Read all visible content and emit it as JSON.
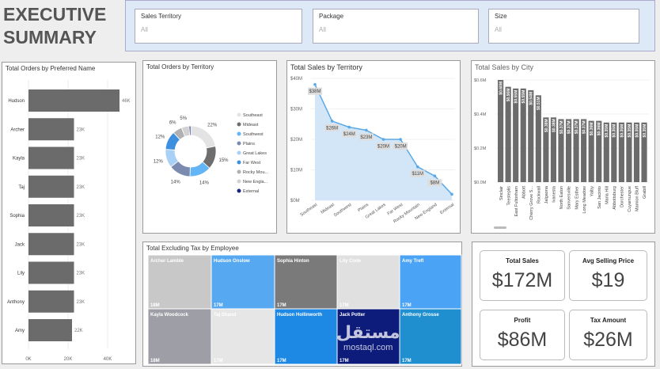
{
  "header": {
    "title_line1": "EXECUTIVE",
    "title_line2": "SUMMARY"
  },
  "slicers": [
    {
      "label": "Sales Territory",
      "value": "All"
    },
    {
      "label": "Package",
      "value": "All"
    },
    {
      "label": "Size",
      "value": "All"
    }
  ],
  "chart_data": [
    {
      "type": "hbar",
      "title": "Total Orders by Preferred Name",
      "categories": [
        "Hudson",
        "Archer",
        "Kayla",
        "Taj",
        "Sophia",
        "Jack",
        "Lily",
        "Anthony",
        "Amy"
      ],
      "values": [
        46000,
        23000,
        23000,
        23000,
        23000,
        23000,
        23000,
        23000,
        22000
      ],
      "value_labels": [
        "46K",
        "23K",
        "23K",
        "23K",
        "23K",
        "23K",
        "23K",
        "23K",
        "22K"
      ],
      "color": "#6b6b6b",
      "xlim": [
        0,
        50000
      ],
      "xticks": [
        {
          "value": 0,
          "label": "0K"
        },
        {
          "value": 20000,
          "label": "20K"
        },
        {
          "value": 40000,
          "label": "40K"
        }
      ]
    },
    {
      "type": "donut",
      "title": "Total Orders by Territory",
      "categories": [
        "Southeast",
        "Mideast",
        "Southwest",
        "Plains",
        "Great Lakes",
        "Far West",
        "Rocky Mou...",
        "New Engla...",
        "External"
      ],
      "values": [
        22,
        15,
        14,
        14,
        12,
        12,
        6,
        5,
        1
      ],
      "value_labels": [
        "22%",
        "15%",
        "14%",
        "14%",
        "12%",
        "12%",
        "6%",
        "5%",
        null
      ],
      "colors": [
        "#e3e3e3",
        "#6e6e6e",
        "#64b5f6",
        "#7b8bb0",
        "#a9d0f5",
        "#3d8fe0",
        "#b0b0b0",
        "#d2d2d2",
        "#1a237e"
      ]
    },
    {
      "type": "area",
      "title": "Total Sales by Territory",
      "categories": [
        "Southeast",
        "Mideast",
        "Southwest",
        "Plains",
        "Great Lakes",
        "Far West",
        "Rocky Mountain",
        "New England",
        "External"
      ],
      "values": [
        38000000,
        26000000,
        24000000,
        23000000,
        20000000,
        20000000,
        11000000,
        8000000,
        2000000
      ],
      "value_labels": [
        "$38M",
        "$26M",
        "$24M",
        "$23M",
        "$20M",
        "$20M",
        "$11M",
        "$8M",
        null
      ],
      "color": "#5aa9e6",
      "ylim": [
        0,
        40000000
      ],
      "yticks": [
        {
          "value": 0,
          "label": "$0M"
        },
        {
          "value": 10000000,
          "label": "$10M"
        },
        {
          "value": 20000000,
          "label": "$20M"
        },
        {
          "value": 30000000,
          "label": "$30M"
        },
        {
          "value": 40000000,
          "label": "$40M"
        }
      ]
    },
    {
      "type": "bar",
      "title": "Total Sales by City",
      "categories": [
        "Sinclair",
        "Teesteplis",
        "East Fultonham",
        "Abbott",
        "Cherry Grove S...",
        "Rockwall",
        "Jalgaona",
        "Ivanesta",
        "North Eaton",
        "Sanversville",
        "Mary Esther",
        "Long Meadow",
        "Yalby",
        "San Jacinto",
        "Maria Hill",
        "Abbottsburg",
        "Dorchester",
        "Cuyamungue",
        "Mamion Bluff",
        "Grabill"
      ],
      "values": [
        600000,
        560000,
        550000,
        550000,
        540000,
        510000,
        380000,
        380000,
        370000,
        370000,
        370000,
        370000,
        360000,
        360000,
        350000,
        350000,
        350000,
        350000,
        350000,
        350000
      ],
      "value_labels": [
        "$0.60M",
        "$0.56M",
        "$0.55M",
        "$0.55M",
        "$0.54M",
        "$0.51M",
        "$0.38M",
        "$0.38M",
        "$0.37M",
        "$0.37M",
        "$0.37M",
        "$0.37M",
        "$0.36M",
        "$0.36M",
        "$0.35M",
        "$0.35M",
        "$0.35M",
        "$0.35M",
        "$0.35M",
        "$0.35M"
      ],
      "color": "#6b6b6b",
      "ylim": [
        0,
        600000
      ],
      "yticks": [
        {
          "value": 0,
          "label": "$0.0M"
        },
        {
          "value": 200000,
          "label": "$0.2M"
        },
        {
          "value": 400000,
          "label": "$0.4M"
        },
        {
          "value": 600000,
          "label": "$0.6M"
        }
      ]
    },
    {
      "type": "treemap",
      "title": "Total Excluding Tax by Employee",
      "categories": [
        "Archer Lamble",
        "Hudson Onslow",
        "Sophia Hinton",
        "Lily Code",
        "Amy Trefl",
        "Kayla Woodcock",
        "Taj Shand",
        "Hudson Hollinworth",
        "Jack Potter",
        "Anthony Grosse"
      ],
      "values": [
        18000000,
        17000000,
        17000000,
        17000000,
        17000000,
        18000000,
        17000000,
        17000000,
        17000000,
        17000000
      ],
      "value_labels": [
        "18M",
        "17M",
        "17M",
        "17M",
        "17M",
        "18M",
        "17M",
        "17M",
        "17M",
        "17M"
      ],
      "colors": [
        "#c8c8c8",
        "#56a8f0",
        "#7a7a7a",
        "#e0e0e0",
        "#4aa3f5",
        "#9e9ea6",
        "#e6e6e6",
        "#1e88e5",
        "#0d1b7a",
        "#1f8fd0"
      ]
    }
  ],
  "cards": [
    {
      "label": "Total Sales",
      "value": "$172M"
    },
    {
      "label": "Avg Selling Price",
      "value": "$19"
    },
    {
      "label": "Profit",
      "value": "$86M"
    },
    {
      "label": "Tax Amount",
      "value": "$26M"
    }
  ],
  "watermark": {
    "arabic": "مستقل",
    "latin": "mostaql.com"
  }
}
